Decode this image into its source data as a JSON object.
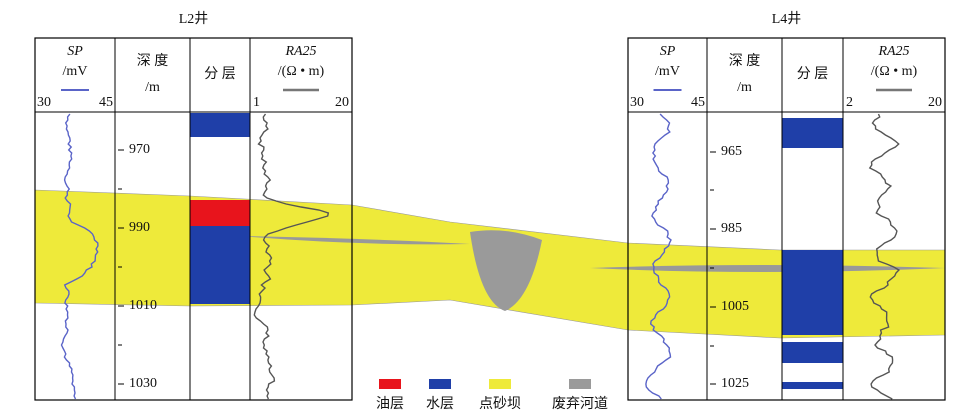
{
  "wells": [
    {
      "name": "L2井",
      "sp": "SP",
      "sp_unit": "/mV",
      "sp_min": "30",
      "sp_max": "45",
      "depth": "深 度",
      "depth_unit": "/m",
      "layer": "分 层",
      "ra": "RA25",
      "ra_unit": "/(Ω • m)",
      "ra_min": "1",
      "ra_max": "20",
      "depth_labels": [
        "970",
        "990",
        "1010",
        "1030"
      ]
    },
    {
      "name": "L4井",
      "sp": "SP",
      "sp_unit": "/mV",
      "sp_min": "30",
      "sp_max": "45",
      "depth": "深 度",
      "depth_unit": "/m",
      "layer": "分 层",
      "ra": "RA25",
      "ra_unit": "/(Ω • m)",
      "ra_min": "2",
      "ra_max": "20",
      "depth_labels": [
        "965",
        "985",
        "1005",
        "1025"
      ]
    }
  ],
  "legend": [
    "油层",
    "水层",
    "点砂坝",
    "废弃河道"
  ]
}
